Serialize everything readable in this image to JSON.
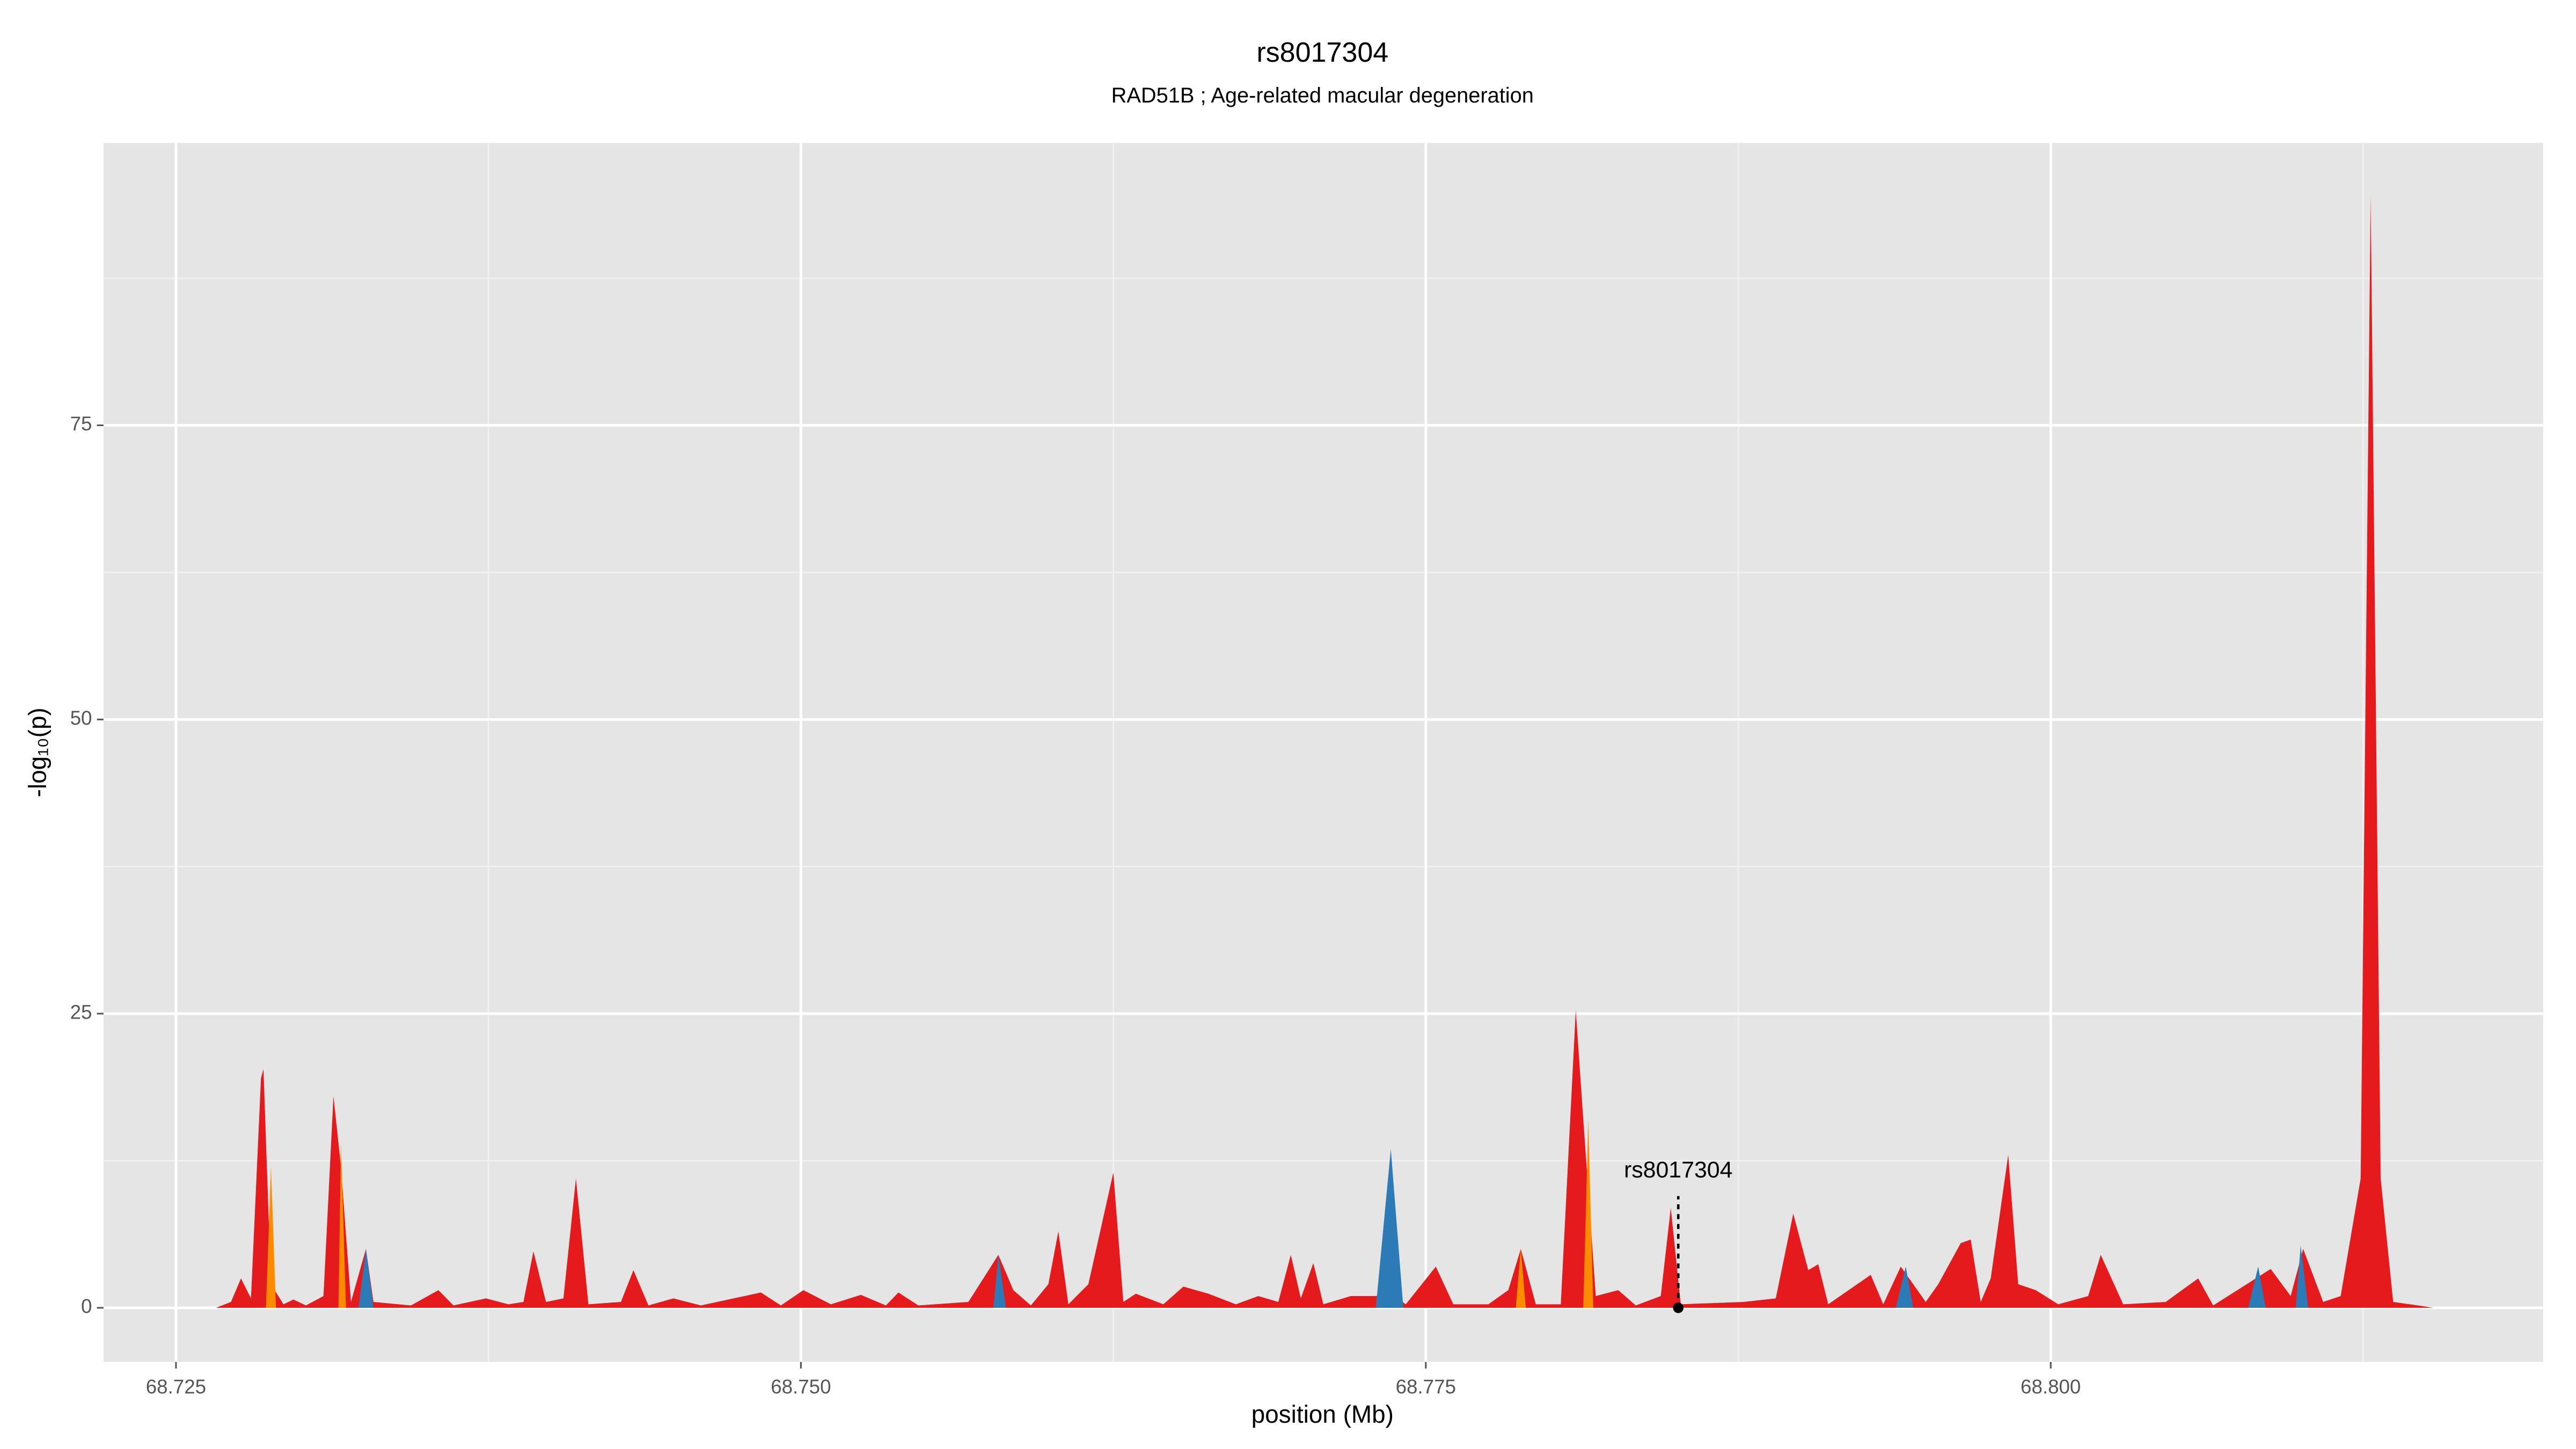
{
  "chart_data": {
    "type": "area",
    "title": "rs8017304",
    "subtitle": "RAD51B ; Age-related macular degeneration",
    "x_label": "position (Mb)",
    "y_label": "-log₁₀(p)",
    "xlim": [
      68.7221,
      68.8197
    ],
    "ylim": [
      -4.6,
      99
    ],
    "xticks": [
      68.725,
      {
        "value": 68.75,
        "label": "68.750"
      },
      68.775,
      {
        "value": 68.8,
        "label": "68.800"
      }
    ],
    "yticks": [
      0,
      25,
      50,
      75
    ],
    "grid": true,
    "series": [
      {
        "color": "#e41a1c",
        "x": [
          68.7266,
          68.7272,
          68.7276,
          68.728,
          68.7284,
          68.7285,
          68.7288,
          68.7293,
          68.7297,
          68.7302,
          68.7309,
          68.7313,
          68.7316,
          68.732,
          68.7326,
          68.7329,
          68.7344,
          68.7355,
          68.7361,
          68.7374,
          68.7383,
          68.7389,
          68.7393,
          68.7398,
          68.7405,
          68.741,
          68.7415,
          68.7428,
          68.7433,
          68.7439,
          68.7449,
          68.746,
          68.7484,
          68.7492,
          68.7501,
          68.7512,
          68.7524,
          68.7534,
          68.7539,
          68.7547,
          68.7567,
          68.7579,
          68.7585,
          68.7592,
          68.7599,
          68.7603,
          68.7607,
          68.7615,
          68.7625,
          68.7629,
          68.7634,
          68.7645,
          68.7653,
          68.7663,
          68.7674,
          68.7683,
          68.7691,
          68.7696,
          68.77,
          68.7705,
          68.7709,
          68.772,
          68.773,
          68.7736,
          68.7742,
          68.7754,
          68.7761,
          68.7775,
          68.7783,
          68.7788,
          68.7794,
          68.7804,
          68.781,
          68.7813,
          68.7818,
          68.7827,
          68.7834,
          68.7844,
          68.7848,
          68.7852,
          68.7877,
          68.789,
          68.7897,
          68.7903,
          68.7907,
          68.7911,
          68.7928,
          68.7933,
          68.794,
          68.795,
          68.7955,
          68.7964,
          68.7968,
          68.7972,
          68.7976,
          68.7983,
          68.7987,
          68.7994,
          68.8003,
          68.8015,
          68.802,
          68.8029,
          68.8046,
          68.8059,
          68.8065,
          68.8088,
          68.8096,
          68.8101,
          68.8109,
          68.8116,
          68.8124,
          68.8128,
          68.8132,
          68.8137,
          68.8147,
          68.8153
        ],
        "values": [
          0,
          0.5,
          2.5,
          0.8,
          19.5,
          20.3,
          2,
          0.3,
          0.7,
          0.2,
          1,
          18,
          12,
          0.5,
          5,
          0.5,
          0.2,
          1.5,
          0.2,
          0.8,
          0.3,
          0.5,
          4.8,
          0.5,
          0.8,
          11,
          0.3,
          0.5,
          3.2,
          0.2,
          0.8,
          0.2,
          1.3,
          0.2,
          1.5,
          0.3,
          1.1,
          0.2,
          1.3,
          0.2,
          0.5,
          4.5,
          1.5,
          0.2,
          2,
          6.5,
          0.3,
          2,
          11.5,
          0.5,
          1.2,
          0.3,
          1.8,
          1.2,
          0.3,
          1,
          0.5,
          4.5,
          0.8,
          3.8,
          0.3,
          1,
          1,
          1.2,
          0.3,
          3.5,
          0.3,
          0.3,
          1.5,
          5,
          0.3,
          0.3,
          25.3,
          16,
          1,
          1.5,
          0.2,
          1,
          8.5,
          0.3,
          0.5,
          0.8,
          8,
          3.2,
          3.7,
          0.3,
          2.8,
          0.3,
          3.5,
          0.5,
          2,
          5.5,
          5.8,
          0.5,
          2.5,
          13,
          2,
          1.5,
          0.3,
          1,
          4.5,
          0.3,
          0.5,
          2.5,
          0.2,
          3.3,
          1,
          5,
          0.5,
          1,
          11,
          94.5,
          11,
          0.5,
          0.2,
          0
        ]
      },
      {
        "color": "#ff8c00",
        "x": [
          68.7286,
          68.7288,
          68.729,
          68.7315,
          68.7316,
          68.7318,
          68.7786,
          68.7788,
          68.779,
          68.7813,
          68.7815,
          68.7817
        ],
        "values": [
          0,
          12,
          0,
          0,
          14,
          0,
          0,
          5,
          0,
          0,
          16,
          0
        ]
      },
      {
        "color": "#2c7bb6",
        "x": [
          68.7323,
          68.7326,
          68.7329,
          68.7577,
          68.7579,
          68.7582,
          68.773,
          68.7736,
          68.7741,
          68.7938,
          68.7942,
          68.7945,
          68.8079,
          68.8083,
          68.8086,
          68.8098,
          68.81,
          68.8103
        ],
        "values": [
          0,
          5,
          0,
          0,
          4.5,
          0,
          0,
          13.5,
          0,
          0,
          3.5,
          0,
          0,
          3.5,
          0,
          0,
          5.3,
          0
        ]
      }
    ],
    "annotation": {
      "text": "rs8017304",
      "x": 68.7851,
      "y": 0
    }
  }
}
